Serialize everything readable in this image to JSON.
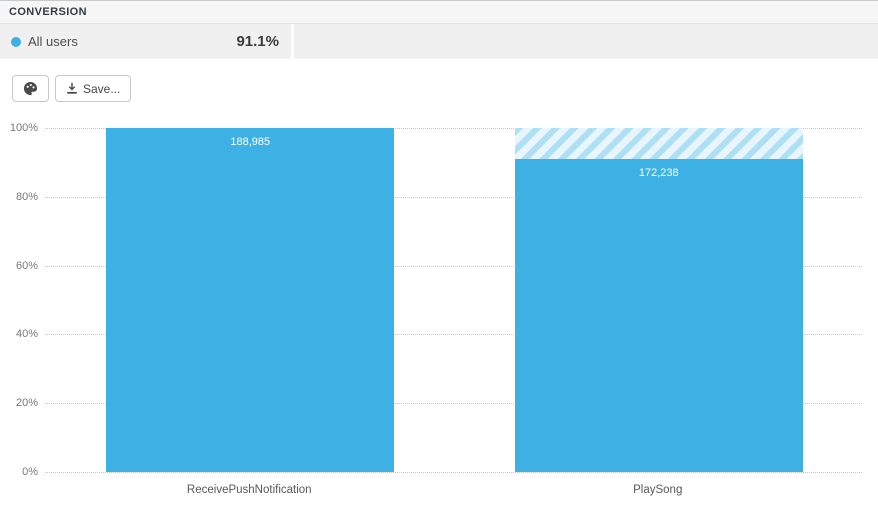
{
  "header": {
    "title": "CONVERSION"
  },
  "legend": {
    "series_label": "All users",
    "conversion_rate": "91.1%",
    "dot_color": "#3cb0e4"
  },
  "toolbar": {
    "save_label": "Save..."
  },
  "chart_data": {
    "type": "bar",
    "title": "",
    "categories": [
      "ReceivePushNotification",
      "PlaySong"
    ],
    "values": [
      188985,
      172238
    ],
    "value_labels": [
      "188,985",
      "172,238"
    ],
    "percents": [
      100,
      91.1
    ],
    "y_ticks": [
      "100%",
      "80%",
      "60%",
      "40%",
      "20%",
      "0%"
    ],
    "ylim": [
      0,
      100
    ],
    "ylabel": "",
    "xlabel": "",
    "grid": "dotted horizontal",
    "legend_position": "top-left",
    "bar_color": "#3db1e4",
    "hatch_color": "#ade0f4"
  }
}
